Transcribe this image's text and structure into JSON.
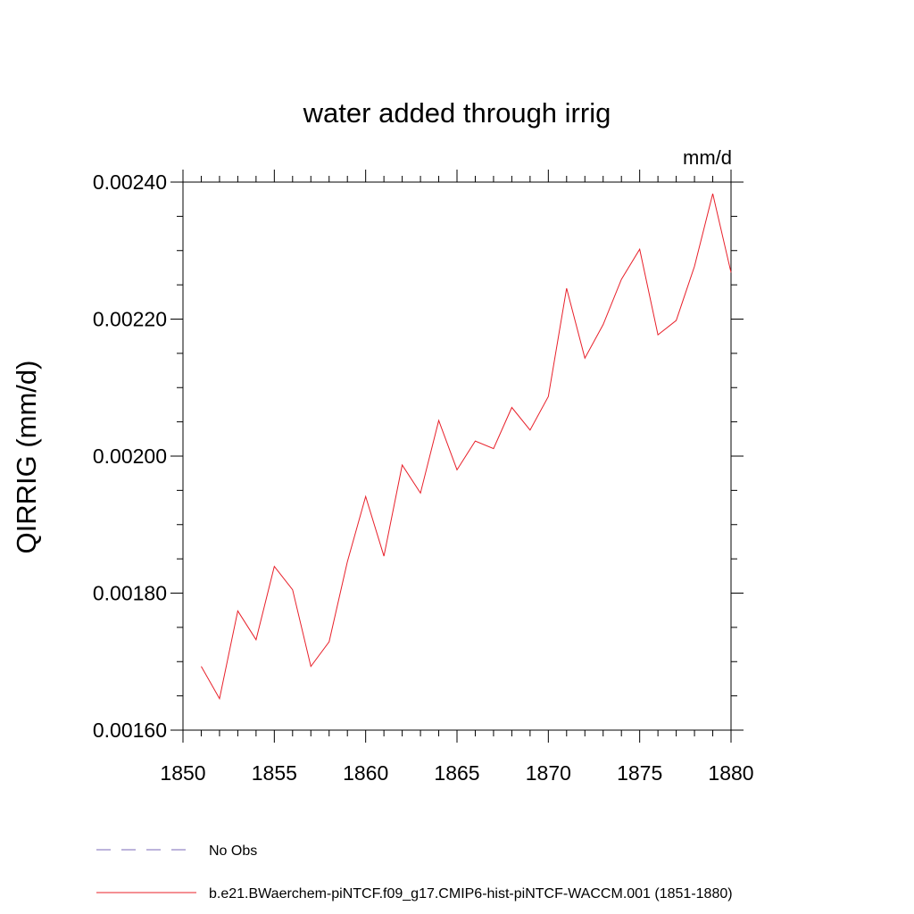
{
  "chart_data": {
    "type": "line",
    "title": "water added through irrig",
    "units_label": "mm/d",
    "ylabel": "QIRRIG  (mm/d)",
    "xlabel": "",
    "xlim": [
      1850,
      1880
    ],
    "ylim": [
      0.0016,
      0.0024
    ],
    "x_ticks": [
      "1850",
      "1855",
      "1860",
      "1865",
      "1870",
      "1875",
      "1880"
    ],
    "y_ticks": [
      "0.00160",
      "0.00180",
      "0.00200",
      "0.00220",
      "0.00240"
    ],
    "grid": false,
    "legend_position": "bottom",
    "series": [
      {
        "name": "No Obs",
        "color": "#7b68b8",
        "dashed": true,
        "x": [],
        "values": []
      },
      {
        "name": "b.e21.BWaerchem-piNTCF.f09_g17.CMIP6-hist-piNTCF-WACCM.001 (1851-1880)",
        "color": "#e8202a",
        "dashed": false,
        "x": [
          1851,
          1852,
          1853,
          1854,
          1855,
          1856,
          1857,
          1858,
          1859,
          1860,
          1861,
          1862,
          1863,
          1864,
          1865,
          1866,
          1867,
          1868,
          1869,
          1870,
          1871,
          1872,
          1873,
          1874,
          1875,
          1876,
          1877,
          1878,
          1879,
          1880
        ],
        "values": [
          0.001693,
          0.001646,
          0.001774,
          0.001732,
          0.001839,
          0.001805,
          0.001693,
          0.001729,
          0.001846,
          0.001941,
          0.001854,
          0.001987,
          0.001946,
          0.002052,
          0.00198,
          0.002022,
          0.002011,
          0.002071,
          0.002038,
          0.002087,
          0.002245,
          0.002143,
          0.002192,
          0.002258,
          0.002302,
          0.002177,
          0.002198,
          0.002277,
          0.002383,
          0.002268
        ]
      }
    ]
  }
}
